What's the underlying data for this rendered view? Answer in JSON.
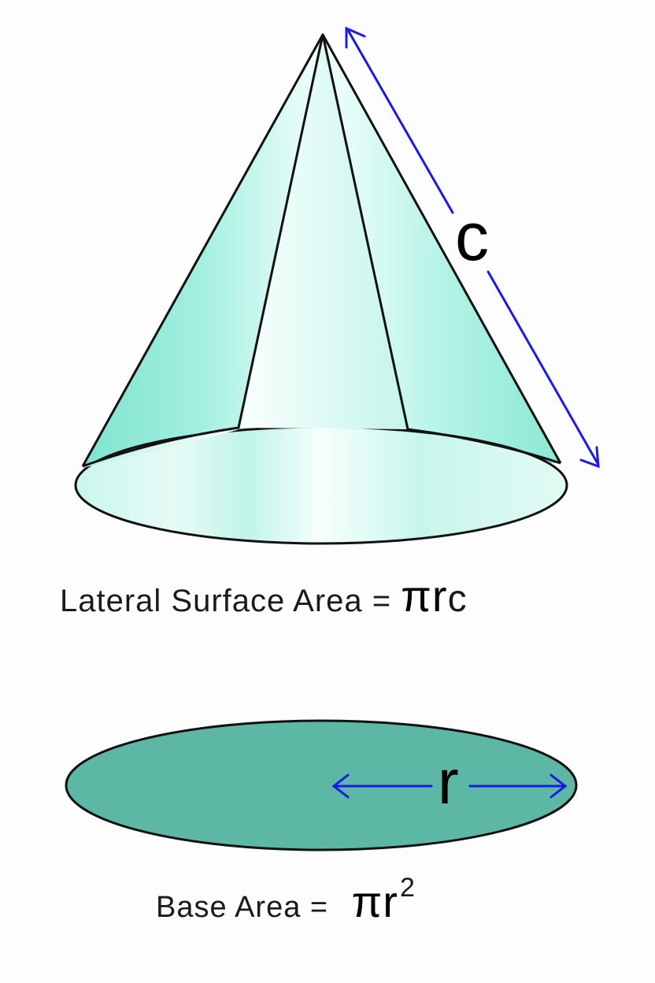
{
  "cone": {
    "slant_label": "c",
    "colors": {
      "fill": "#8ae8d4",
      "highlight": "#f2fffc",
      "outline": "#111111",
      "arrow": "#1a1ae6"
    }
  },
  "lateral_formula": {
    "text": "Lateral Surface Area =",
    "pi": "π",
    "r": "r",
    "c": "c"
  },
  "base": {
    "radius_label": "r",
    "colors": {
      "fill": "#5cb8a4",
      "arrow": "#1a1ae6"
    }
  },
  "base_formula": {
    "text": "Base Area =",
    "pi": "π",
    "r": "r",
    "exponent": "2"
  }
}
